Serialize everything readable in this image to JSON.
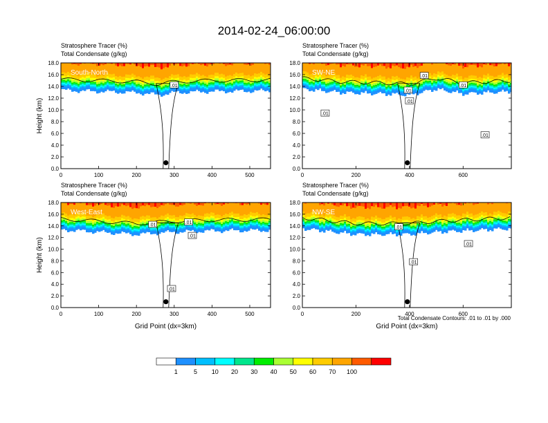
{
  "title": "2014-02-24_06:00:00",
  "colorbar": {
    "colors": [
      "#ffffff",
      "#1e90ff",
      "#00bfff",
      "#00ffff",
      "#00e68c",
      "#00ee00",
      "#aaff33",
      "#ffff00",
      "#ffcc00",
      "#ffa500",
      "#ff5a00",
      "#ff0000"
    ],
    "labels": [
      "1",
      "5",
      "10",
      "20",
      "30",
      "40",
      "50",
      "60",
      "70",
      "100"
    ]
  },
  "contour_note": "Total Condensate Contours: .01 to .01 by .000",
  "chart_data": [
    {
      "type": "heatmap",
      "id": "south-north",
      "panel_label": "South-North",
      "title_line1": "Stratosphere Tracer   (%)",
      "title_line2": "Total Condensate   (g/kg)",
      "ylabel": "Height (km)",
      "xlabel": "",
      "xlim": [
        0,
        555
      ],
      "ylim": [
        0,
        18
      ],
      "xticks": [
        0,
        100,
        200,
        300,
        400,
        500
      ],
      "yticks": [
        "0.0",
        "2.0",
        "4.0",
        "6.0",
        "8.0",
        "10.0",
        "12.0",
        "14.0",
        "16.0",
        "18.0"
      ],
      "tropopause_km": [
        [
          0,
          15.0
        ],
        [
          100,
          14.8
        ],
        [
          200,
          14.6
        ],
        [
          260,
          14.2
        ],
        [
          300,
          14.6
        ],
        [
          400,
          14.8
        ],
        [
          555,
          14.9
        ]
      ],
      "marker": {
        "x": 278,
        "y": 1.0
      },
      "contour_labels": [
        {
          "text": ".01",
          "x": 300,
          "y": 14.2
        }
      ]
    },
    {
      "type": "heatmap",
      "id": "sw-ne",
      "panel_label": "SW-NE",
      "title_line1": "Stratosphere Tracer   (%)",
      "title_line2": "Total Condensate   (g/kg)",
      "ylabel": "",
      "xlabel": "",
      "xlim": [
        0,
        780
      ],
      "ylim": [
        0,
        18
      ],
      "xticks": [
        0,
        200,
        400,
        600
      ],
      "yticks": [
        "0.0",
        "2.0",
        "4.0",
        "6.0",
        "8.0",
        "10.0",
        "12.0",
        "14.0",
        "16.0",
        "18.0"
      ],
      "tropopause_km": [
        [
          0,
          15.2
        ],
        [
          150,
          14.6
        ],
        [
          300,
          14.4
        ],
        [
          400,
          14.2
        ],
        [
          500,
          15.2
        ],
        [
          600,
          14.4
        ],
        [
          780,
          14.8
        ]
      ],
      "marker": {
        "x": 392,
        "y": 1.0
      },
      "contour_labels": [
        {
          "text": ".01",
          "x": 85,
          "y": 9.4
        },
        {
          "text": ".01",
          "x": 400,
          "y": 11.5
        },
        {
          "text": ".01",
          "x": 395,
          "y": 13.3
        },
        {
          "text": ".01",
          "x": 455,
          "y": 15.8
        },
        {
          "text": ".01",
          "x": 600,
          "y": 14.2
        },
        {
          "text": ".01",
          "x": 682,
          "y": 5.7
        }
      ]
    },
    {
      "type": "heatmap",
      "id": "west-east",
      "panel_label": "West-East",
      "title_line1": "Stratosphere Tracer   (%)",
      "title_line2": "Total Condensate   (g/kg)",
      "ylabel": "Height (km)",
      "xlabel": "Grid Point (dx=3km)",
      "xlim": [
        0,
        555
      ],
      "ylim": [
        0,
        18
      ],
      "xticks": [
        0,
        100,
        200,
        300,
        400,
        500
      ],
      "yticks": [
        "0.0",
        "2.0",
        "4.0",
        "6.0",
        "8.0",
        "10.0",
        "12.0",
        "14.0",
        "16.0",
        "18.0"
      ],
      "tropopause_km": [
        [
          0,
          15.0
        ],
        [
          100,
          14.6
        ],
        [
          200,
          14.2
        ],
        [
          250,
          14.4
        ],
        [
          300,
          14.6
        ],
        [
          400,
          14.8
        ],
        [
          555,
          14.9
        ]
      ],
      "marker": {
        "x": 278,
        "y": 1.0
      },
      "contour_labels": [
        {
          "text": ".01",
          "x": 243,
          "y": 14.2
        },
        {
          "text": ".01",
          "x": 338,
          "y": 14.6
        },
        {
          "text": ".01",
          "x": 348,
          "y": 12.3
        },
        {
          "text": ".01",
          "x": 293,
          "y": 3.2
        }
      ]
    },
    {
      "type": "heatmap",
      "id": "nw-se",
      "panel_label": "NW-SE",
      "title_line1": "Stratosphere Tracer   (%)",
      "title_line2": "Total Condensate   (g/kg)",
      "ylabel": "",
      "xlabel": "Grid Point (dx=3km)",
      "xlim": [
        0,
        780
      ],
      "ylim": [
        0,
        18
      ],
      "xticks": [
        0,
        200,
        400,
        600
      ],
      "yticks": [
        "0.0",
        "2.0",
        "4.0",
        "6.0",
        "8.0",
        "10.0",
        "12.0",
        "14.0",
        "16.0",
        "18.0"
      ],
      "tropopause_km": [
        [
          0,
          15.2
        ],
        [
          200,
          14.2
        ],
        [
          400,
          14.2
        ],
        [
          500,
          14.6
        ],
        [
          600,
          14.8
        ],
        [
          780,
          15.2
        ]
      ],
      "marker": {
        "x": 392,
        "y": 1.0
      },
      "contour_labels": [
        {
          "text": ".01",
          "x": 360,
          "y": 13.8
        },
        {
          "text": ".01",
          "x": 415,
          "y": 7.8
        },
        {
          "text": ".01",
          "x": 620,
          "y": 10.9
        }
      ]
    }
  ]
}
